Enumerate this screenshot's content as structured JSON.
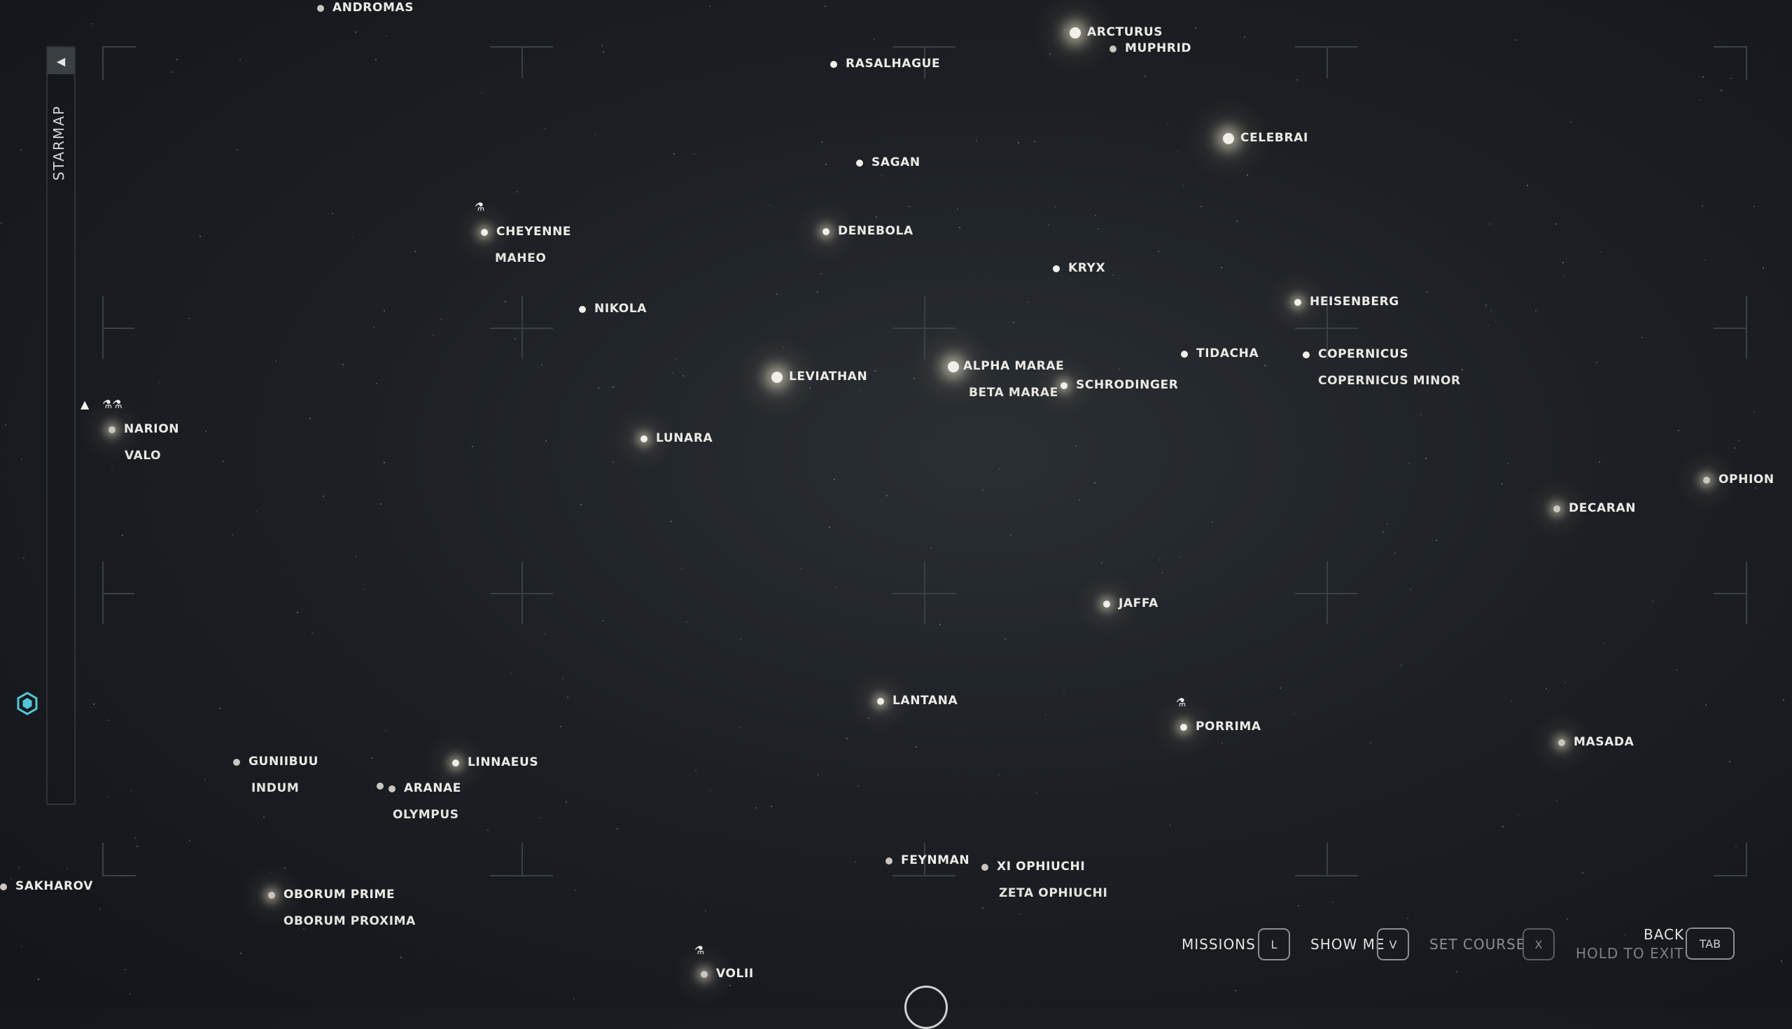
{
  "sidebar": {
    "title": "STARMAP",
    "toggle_icon": "collapse-left-icon"
  },
  "systems": [
    {
      "id": "andromas",
      "name": "ANDROMAS"
    },
    {
      "id": "arcturus",
      "name": "ARCTURUS"
    },
    {
      "id": "muphrid",
      "name": "MUPHRID"
    },
    {
      "id": "rasalhague",
      "name": "RASALHAGUE"
    },
    {
      "id": "celebrai",
      "name": "CELEBRAI"
    },
    {
      "id": "sagan",
      "name": "SAGAN"
    },
    {
      "id": "cheyenne",
      "name": "CHEYENNE",
      "sub": "MAHEO"
    },
    {
      "id": "denebola",
      "name": "DENEBOLA"
    },
    {
      "id": "kryx",
      "name": "KRYX"
    },
    {
      "id": "nikola",
      "name": "NIKOLA"
    },
    {
      "id": "heisenberg",
      "name": "HEISENBERG"
    },
    {
      "id": "tidacha",
      "name": "TIDACHA"
    },
    {
      "id": "copernicus",
      "name": "COPERNICUS",
      "sub": "COPERNICUS MINOR"
    },
    {
      "id": "leviathan",
      "name": "LEVIATHAN"
    },
    {
      "id": "alpha-marae",
      "name": "ALPHA MARAE",
      "sub": "BETA MARAE"
    },
    {
      "id": "schrodinger",
      "name": "SCHRODINGER"
    },
    {
      "id": "narion",
      "name": "NARION",
      "sub": "VALO"
    },
    {
      "id": "lunara",
      "name": "LUNARA"
    },
    {
      "id": "ophion",
      "name": "OPHION"
    },
    {
      "id": "decaran",
      "name": "DECARAN"
    },
    {
      "id": "jaffa",
      "name": "JAFFA"
    },
    {
      "id": "lantana",
      "name": "LANTANA"
    },
    {
      "id": "porrima",
      "name": "PORRIMA"
    },
    {
      "id": "masada",
      "name": "MASADA"
    },
    {
      "id": "guniibuu",
      "name": "GUNIIBUU",
      "sub": "INDUM"
    },
    {
      "id": "linnaeus",
      "name": "LINNAEUS"
    },
    {
      "id": "aranae",
      "name": "ARANAE",
      "sub": "OLYMPUS"
    },
    {
      "id": "feynman",
      "name": "FEYNMAN"
    },
    {
      "id": "xi-ophiuchi",
      "name": "XI OPHIUCHI",
      "sub": "ZETA OPHIUCHI"
    },
    {
      "id": "sakharov",
      "name": "SAKHAROV"
    },
    {
      "id": "oborum-prime",
      "name": "OBORUM PRIME",
      "sub": "OBORUM PROXIMA"
    },
    {
      "id": "volii",
      "name": "VOLII"
    }
  ],
  "bottom_bar": {
    "missions": {
      "label": "MISSIONS",
      "key": "L"
    },
    "show_me": {
      "label": "SHOW ME",
      "key": "V"
    },
    "set_course": {
      "label": "SET COURSE",
      "key": "X"
    },
    "back": {
      "label": "BACK",
      "hold": "HOLD TO EXIT",
      "key": "TAB"
    }
  },
  "colors": {
    "background": "#1c2024",
    "star": "#f1efe9",
    "grid": "#3a4045"
  }
}
